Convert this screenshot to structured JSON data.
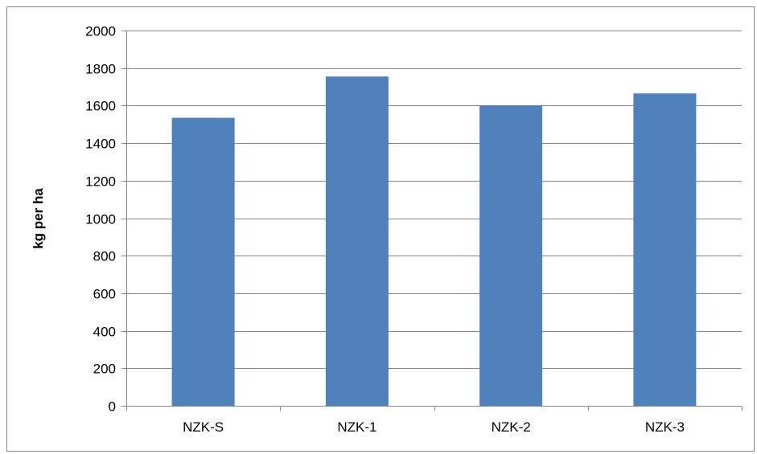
{
  "chart_data": {
    "type": "bar",
    "title": "",
    "xlabel": "",
    "ylabel": "kg per ha",
    "categories": [
      "NZK-S",
      "NZK-1",
      "NZK-2",
      "NZK-3"
    ],
    "values": [
      1535,
      1755,
      1600,
      1665
    ],
    "ylim": [
      0,
      2000
    ],
    "yticks": [
      0,
      200,
      400,
      600,
      800,
      1000,
      1200,
      1400,
      1600,
      1800,
      2000
    ],
    "grid": true,
    "legend": "none",
    "bar_color": "#4f81bd",
    "grid_color": "#868686"
  }
}
